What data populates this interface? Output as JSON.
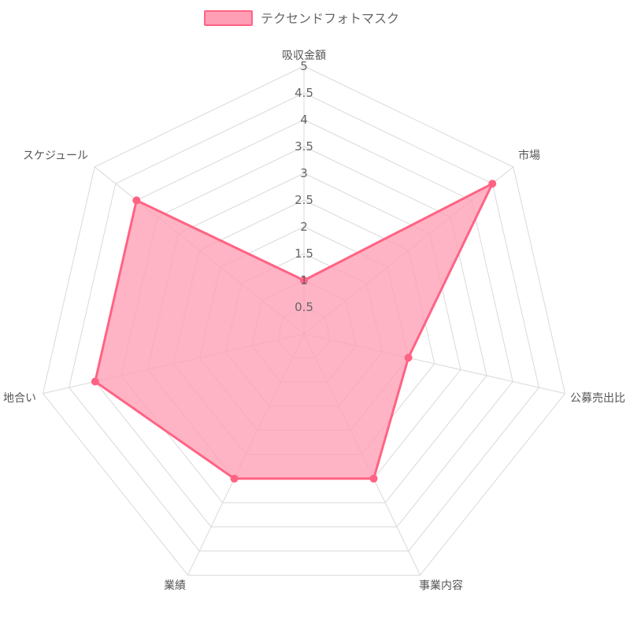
{
  "chart_data": {
    "type": "radar",
    "axes": [
      "吸収金額",
      "市場",
      "公募売出比",
      "事業内容",
      "業績",
      "地合い",
      "スケジュール"
    ],
    "series": [
      {
        "name": "テクセンドフォトマスク",
        "values": [
          1,
          4.5,
          2,
          3,
          3,
          4,
          4
        ]
      }
    ],
    "r_range": [
      0,
      5
    ],
    "ticks": [
      "0.5",
      "1",
      "1.5",
      "2",
      "2.5",
      "3",
      "3.5",
      "4",
      "4.5",
      "5"
    ],
    "legend_position": "top",
    "grid": true,
    "colors": {
      "series_fill": "#ff9fb5",
      "series_stroke": "#ff6384",
      "grid": "#d9d9d9"
    }
  }
}
